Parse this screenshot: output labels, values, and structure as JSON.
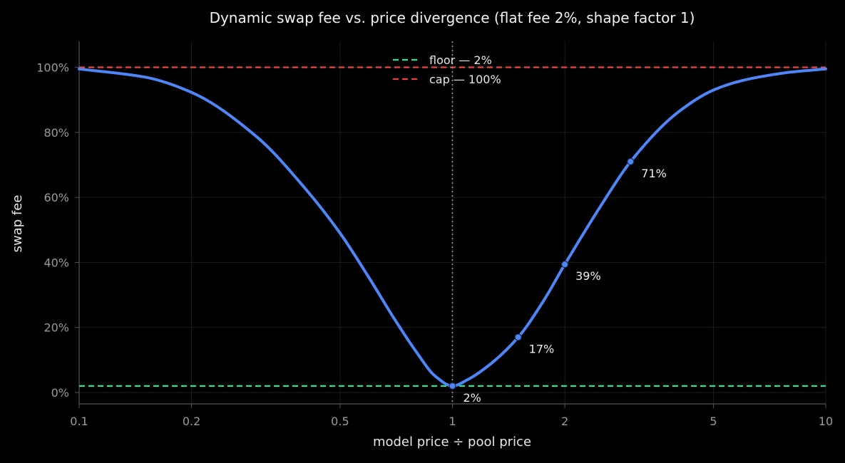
{
  "chart_data": {
    "type": "line",
    "title": "Dynamic swap fee vs. price divergence (flat fee 2%, shape factor 1)",
    "xlabel": "model price ÷ pool price",
    "ylabel": "swap fee",
    "x_scale": "log",
    "xlim": [
      0.1,
      10
    ],
    "ylim": [
      -0.035,
      1.08
    ],
    "x_ticks": [
      0.1,
      0.2,
      0.5,
      1,
      2,
      5,
      10
    ],
    "x_tick_labels": [
      "0.1",
      "0.2",
      "0.5",
      "1",
      "2",
      "5",
      "10"
    ],
    "y_ticks": [
      0,
      0.2,
      0.4,
      0.6,
      0.8,
      1.0
    ],
    "y_tick_labels": [
      "0%",
      "20%",
      "40%",
      "60%",
      "80%",
      "100%"
    ],
    "grid": true,
    "legend_position": "top-center",
    "series": [
      {
        "color": "#4f86f7",
        "x": [
          0.1,
          0.15,
          0.2,
          0.3,
          0.4,
          0.5,
          0.6,
          0.7,
          0.8,
          0.9,
          1.0,
          1.1,
          1.25,
          1.5,
          1.75,
          2.0,
          2.5,
          3.0,
          4.0,
          5.0,
          6.0,
          7.0,
          8.0,
          10.0
        ],
        "y": [
          0.995,
          0.97,
          0.923,
          0.785,
          0.632,
          0.49,
          0.35,
          0.225,
          0.125,
          0.05,
          0.02,
          0.04,
          0.083,
          0.17,
          0.28,
          0.394,
          0.575,
          0.71,
          0.86,
          0.93,
          0.96,
          0.975,
          0.985,
          0.995
        ]
      }
    ],
    "reference_lines": [
      {
        "axis": "y",
        "value": 0.02,
        "label": "floor — 2%",
        "color": "#22e39a",
        "style": "dashed"
      },
      {
        "axis": "y",
        "value": 1.0,
        "label": "cap — 100%",
        "color": "#ef4444",
        "style": "dashed"
      },
      {
        "axis": "x",
        "value": 1,
        "color": "#8a8a8a",
        "style": "dotted"
      }
    ],
    "annotations": [
      {
        "x": 1,
        "y": 0.02,
        "label": "2%"
      },
      {
        "x": 1.5,
        "y": 0.17,
        "label": "17%"
      },
      {
        "x": 2,
        "y": 0.394,
        "label": "39%"
      },
      {
        "x": 3,
        "y": 0.71,
        "label": "71%"
      }
    ]
  },
  "colors": {
    "background": "#000000",
    "grid": "#1c1c1c",
    "axis": "#555555",
    "curve": "#4f86f7",
    "floor": "#22e39a",
    "cap": "#ef4444",
    "center_line": "#8a8a8a"
  }
}
